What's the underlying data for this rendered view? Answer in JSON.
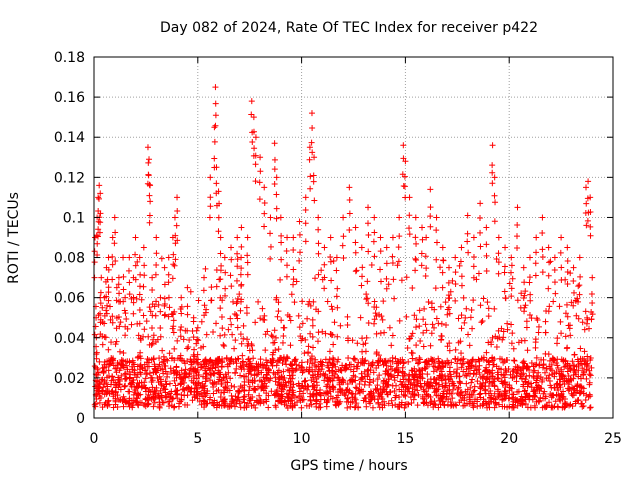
{
  "chart_data": {
    "type": "scatter",
    "title": "Day 082 of 2024, Rate Of TEC Index for receiver p422",
    "xlabel": "GPS time / hours",
    "ylabel": "ROTI / TECUs",
    "xlim": [
      0,
      25
    ],
    "ylim": [
      0,
      0.18
    ],
    "xticks": [
      0,
      5,
      10,
      15,
      20,
      25
    ],
    "yticks": [
      0,
      0.02,
      0.04,
      0.06,
      0.08,
      0.1,
      0.12,
      0.14,
      0.16,
      0.18
    ],
    "xtick_labels": [
      "0",
      "5",
      "10",
      "15",
      "20",
      "25"
    ],
    "ytick_labels": [
      "0",
      "0.02",
      "0.04",
      "0.06",
      "0.08",
      "0.1",
      "0.12",
      "0.14",
      "0.16",
      "0.18"
    ],
    "grid": true,
    "legend": "none",
    "marker": "plus",
    "color": "#ff0000",
    "series": [
      {
        "x": [
          0.05,
          0.1,
          0.15,
          0.2,
          0.25,
          0.3,
          0.3,
          0.35,
          0.4,
          0.5,
          0.6,
          0.7,
          0.9,
          1.0,
          1.1,
          1.2,
          1.4,
          1.5,
          1.7,
          1.9,
          2.0,
          2.2,
          2.4,
          2.6,
          2.65,
          2.7,
          2.8,
          3.0,
          3.2,
          3.4,
          3.6,
          3.8,
          3.9,
          4.0,
          4.2,
          4.5,
          4.8,
          5.0,
          5.3,
          5.6,
          5.8,
          5.85,
          5.9,
          6.0,
          6.1,
          6.3,
          6.6,
          6.9,
          7.1,
          7.4,
          7.6,
          7.7,
          7.8,
          8.0,
          8.2,
          8.5,
          8.7,
          8.8,
          9.0,
          9.3,
          9.6,
          9.9,
          10.2,
          10.4,
          10.5,
          10.6,
          10.8,
          11.1,
          11.4,
          11.7,
          12.0,
          12.3,
          12.6,
          12.9,
          13.2,
          13.5,
          13.8,
          14.1,
          14.4,
          14.7,
          14.9,
          15.0,
          15.2,
          15.5,
          15.8,
          16.0,
          16.2,
          16.5,
          16.8,
          17.1,
          17.4,
          17.7,
          18.0,
          18.3,
          18.6,
          18.9,
          19.2,
          19.3,
          19.5,
          19.8,
          20.1,
          20.4,
          20.7,
          21.0,
          21.3,
          21.6,
          21.9,
          22.2,
          22.5,
          22.8,
          23.1,
          23.4,
          23.7,
          23.8,
          23.9,
          24.0
        ],
        "y": [
          0.09,
          0.05,
          0.1,
          0.11,
          0.116,
          0.112,
          0.06,
          0.07,
          0.055,
          0.06,
          0.075,
          0.08,
          0.09,
          0.1,
          0.065,
          0.07,
          0.08,
          0.06,
          0.08,
          0.07,
          0.09,
          0.08,
          0.085,
          0.135,
          0.129,
          0.116,
          0.07,
          0.09,
          0.06,
          0.075,
          0.08,
          0.09,
          0.1,
          0.11,
          0.06,
          0.065,
          0.05,
          0.045,
          0.07,
          0.12,
          0.145,
          0.165,
          0.125,
          0.113,
          0.09,
          0.08,
          0.085,
          0.09,
          0.095,
          0.09,
          0.158,
          0.15,
          0.14,
          0.13,
          0.115,
          0.1,
          0.137,
          0.12,
          0.1,
          0.09,
          0.09,
          0.098,
          0.11,
          0.135,
          0.152,
          0.13,
          0.1,
          0.085,
          0.09,
          0.08,
          0.1,
          0.115,
          0.095,
          0.085,
          0.105,
          0.1,
          0.09,
          0.085,
          0.09,
          0.1,
          0.136,
          0.128,
          0.11,
          0.1,
          0.095,
          0.09,
          0.114,
          0.1,
          0.085,
          0.075,
          0.08,
          0.085,
          0.101,
          0.09,
          0.107,
          0.095,
          0.136,
          0.12,
          0.09,
          0.085,
          0.08,
          0.105,
          0.075,
          0.08,
          0.09,
          0.1,
          0.085,
          0.08,
          0.09,
          0.085,
          0.075,
          0.08,
          0.115,
          0.118,
          0.11,
          0.07
        ],
        "dense_band": {
          "y_low": 0.005,
          "y_high": 0.03,
          "y_envelope_typical": 0.06
        }
      }
    ]
  }
}
